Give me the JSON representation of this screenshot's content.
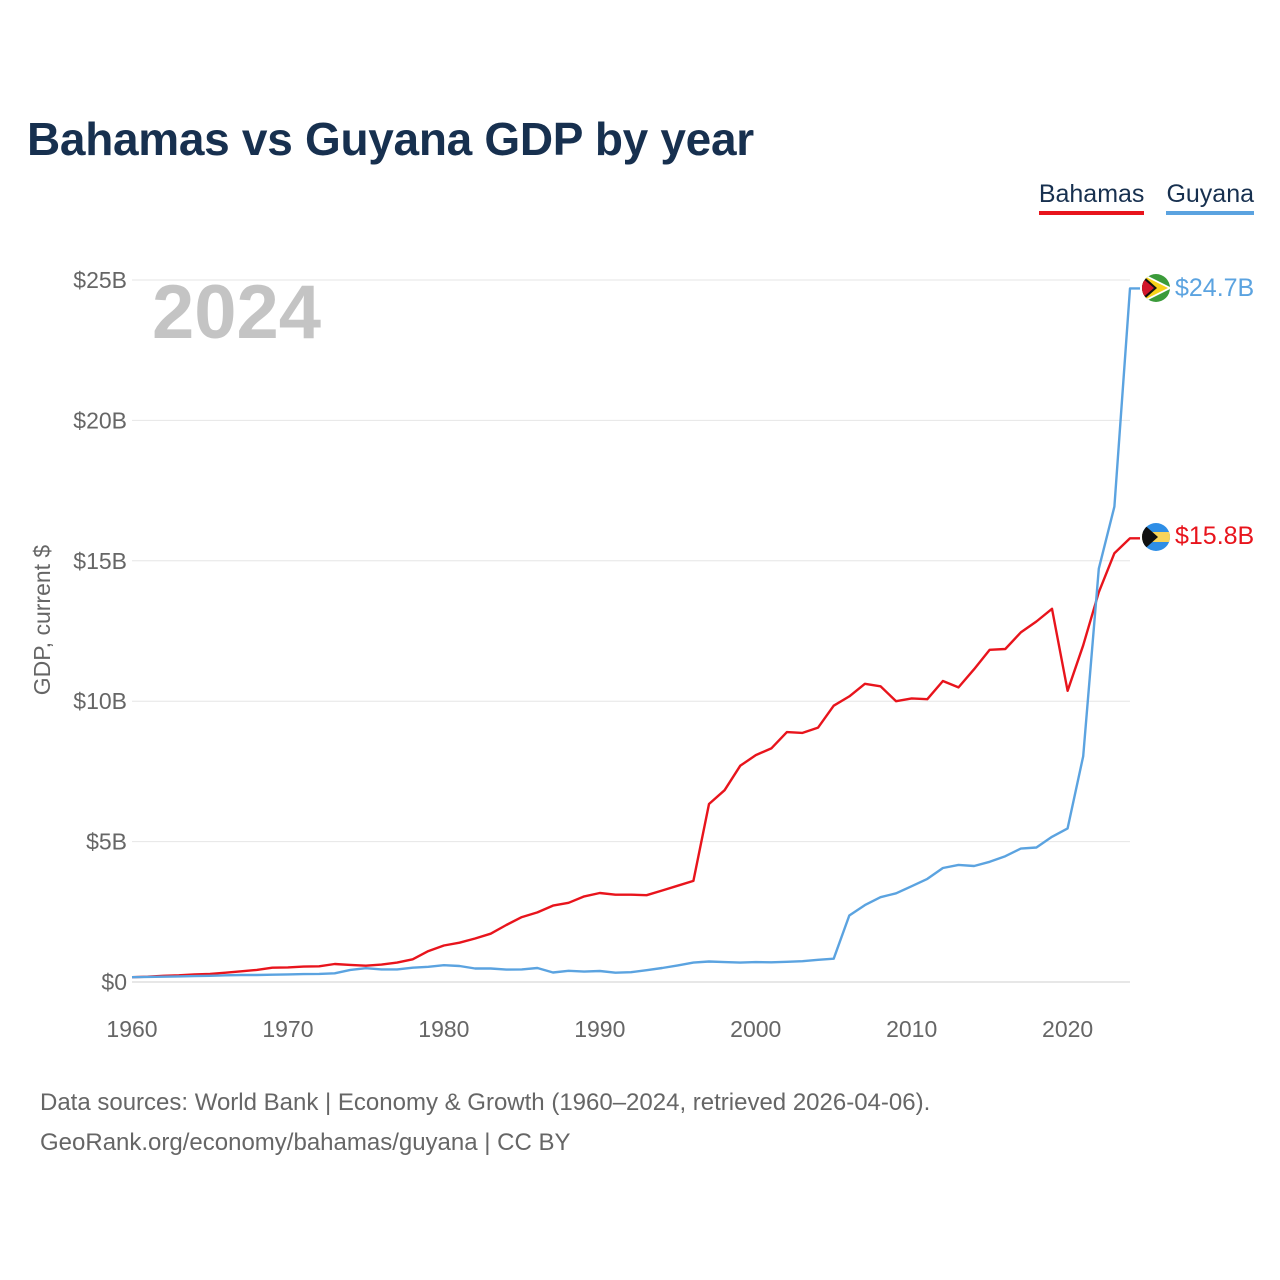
{
  "title": "Bahamas vs Guyana GDP by year",
  "legend": [
    {
      "name": "Bahamas",
      "color": "#e8141c"
    },
    {
      "name": "Guyana",
      "color": "#5ba3e0"
    }
  ],
  "year_watermark": "2024",
  "source": {
    "line1": "Data sources: World Bank | Economy & Growth (1960–2024, retrieved 2026-04-06).",
    "line2": "GeoRank.org/economy/bahamas/guyana | CC BY"
  },
  "chart_data": {
    "type": "line",
    "title": "Bahamas vs Guyana GDP by year",
    "xlabel": "",
    "ylabel": "GDP, current $",
    "xlim": [
      1960,
      2024
    ],
    "ylim": [
      0,
      25
    ],
    "x_ticks": [
      1960,
      1970,
      1980,
      1990,
      2000,
      2010,
      2020
    ],
    "x_tick_labels": [
      "1960",
      "1970",
      "1980",
      "1990",
      "2000",
      "2010",
      "2020"
    ],
    "y_ticks": [
      0,
      5,
      10,
      15,
      20,
      25
    ],
    "y_tick_labels": [
      "$0",
      "$5B",
      "$10B",
      "$15B",
      "$20B",
      "$25B"
    ],
    "y_unit": "billion current US$",
    "grid": true,
    "x": [
      1960,
      1961,
      1962,
      1963,
      1964,
      1965,
      1966,
      1967,
      1968,
      1969,
      1970,
      1971,
      1972,
      1973,
      1974,
      1975,
      1976,
      1977,
      1978,
      1979,
      1980,
      1981,
      1982,
      1983,
      1984,
      1985,
      1986,
      1987,
      1988,
      1989,
      1990,
      1991,
      1992,
      1993,
      1994,
      1995,
      1996,
      1997,
      1998,
      1999,
      2000,
      2001,
      2002,
      2003,
      2004,
      2005,
      2006,
      2007,
      2008,
      2009,
      2010,
      2011,
      2012,
      2013,
      2014,
      2015,
      2016,
      2017,
      2018,
      2019,
      2020,
      2021,
      2022,
      2023,
      2024
    ],
    "series": [
      {
        "name": "Bahamas",
        "color": "#e8141c",
        "end_label": "$15.8B",
        "values": [
          0.17,
          0.19,
          0.22,
          0.24,
          0.27,
          0.29,
          0.33,
          0.38,
          0.43,
          0.51,
          0.52,
          0.55,
          0.56,
          0.64,
          0.61,
          0.58,
          0.62,
          0.69,
          0.81,
          1.1,
          1.3,
          1.4,
          1.55,
          1.72,
          2.03,
          2.31,
          2.48,
          2.72,
          2.82,
          3.05,
          3.17,
          3.11,
          3.11,
          3.09,
          3.26,
          3.43,
          3.6,
          6.34,
          6.83,
          7.7,
          8.08,
          8.32,
          8.9,
          8.87,
          9.06,
          9.84,
          10.17,
          10.62,
          10.53,
          10.0,
          10.1,
          10.07,
          10.72,
          10.49,
          11.14,
          11.83,
          11.86,
          12.45,
          12.84,
          13.29,
          10.37,
          11.99,
          13.88,
          15.27,
          15.8
        ]
      },
      {
        "name": "Guyana",
        "color": "#5ba3e0",
        "end_label": "$24.7B",
        "values": [
          0.17,
          0.18,
          0.19,
          0.2,
          0.21,
          0.22,
          0.24,
          0.25,
          0.25,
          0.26,
          0.27,
          0.28,
          0.29,
          0.31,
          0.43,
          0.49,
          0.45,
          0.45,
          0.51,
          0.54,
          0.6,
          0.57,
          0.48,
          0.48,
          0.44,
          0.45,
          0.5,
          0.34,
          0.4,
          0.37,
          0.39,
          0.33,
          0.35,
          0.42,
          0.5,
          0.59,
          0.69,
          0.73,
          0.71,
          0.69,
          0.71,
          0.7,
          0.72,
          0.74,
          0.79,
          0.83,
          2.37,
          2.74,
          3.02,
          3.16,
          3.41,
          3.67,
          4.06,
          4.17,
          4.13,
          4.28,
          4.48,
          4.75,
          4.79,
          5.17,
          5.47,
          8.04,
          14.72,
          16.93,
          24.7
        ]
      }
    ]
  }
}
